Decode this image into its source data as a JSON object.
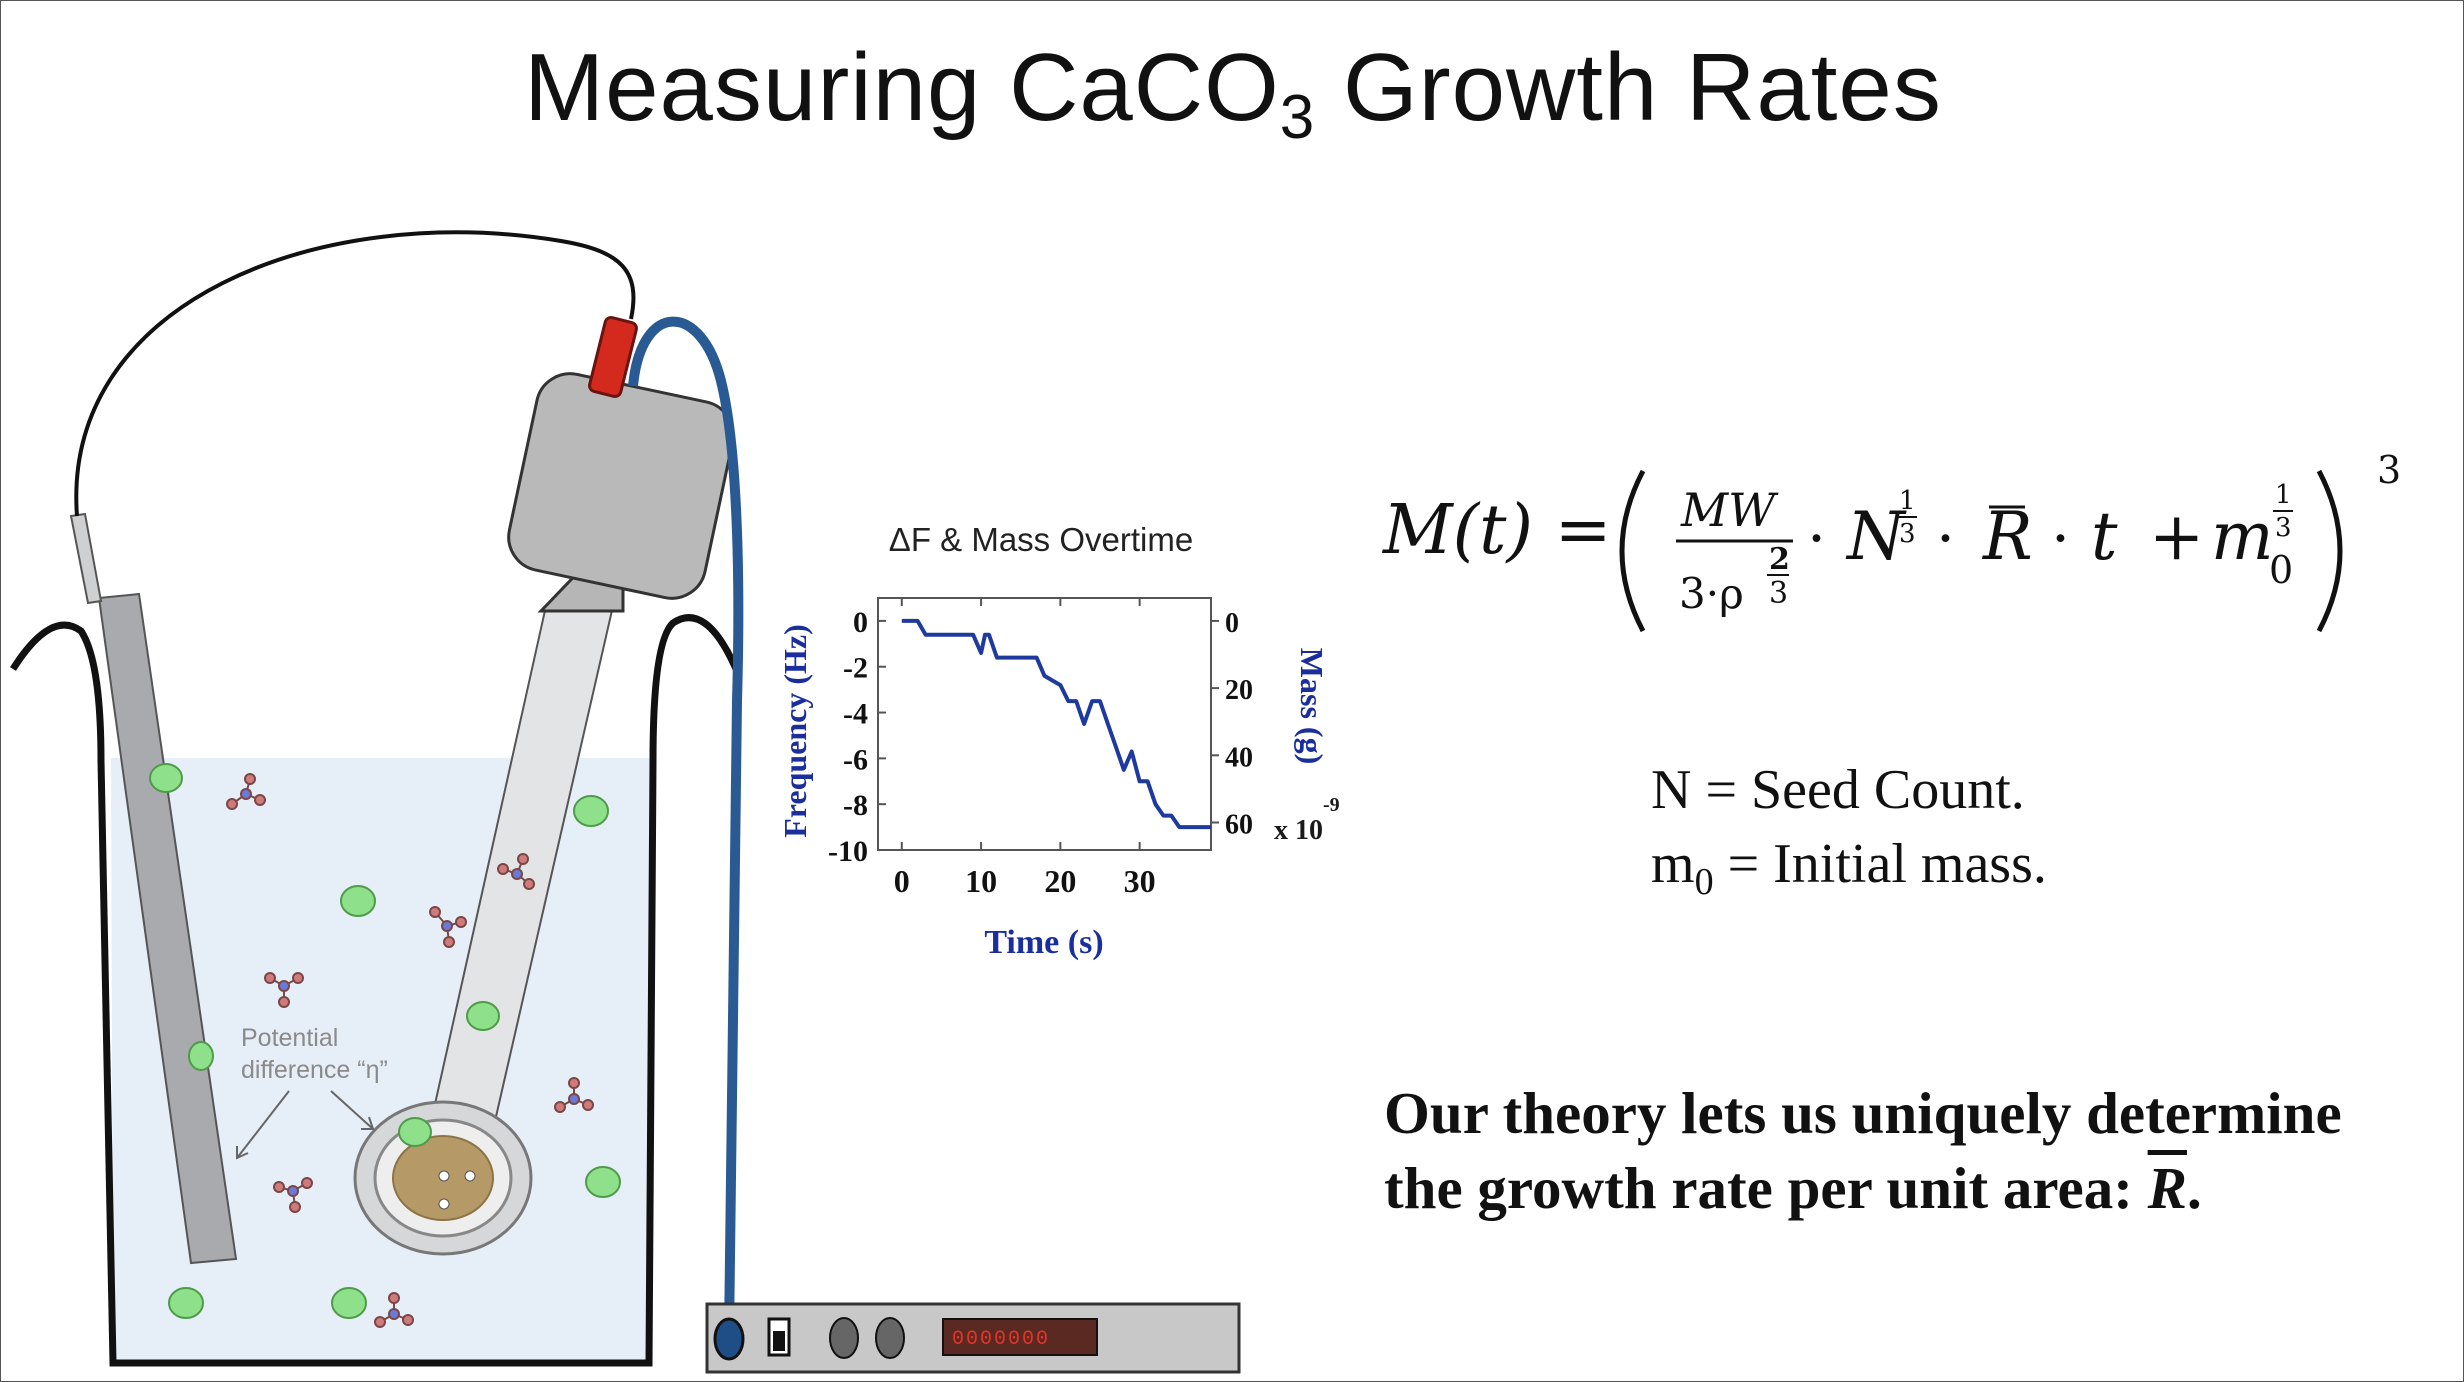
{
  "slide": {
    "title_main": "Measuring CaCO",
    "title_sub": "3",
    "title_end": " Growth Rates"
  },
  "diagram": {
    "annotation_line1": "Potential",
    "annotation_line2": "difference “η”",
    "device_display": "0000000"
  },
  "chart_data": {
    "type": "line",
    "title": "ΔF & Mass Overtime",
    "xlabel": "Time (s)",
    "ylabel_left": "Frequency (Hz)",
    "ylabel_right": "Mass (g)",
    "right_scale_label": "x 10",
    "right_scale_exp": "-9",
    "xlim": [
      -3,
      39
    ],
    "ylim": [
      -10,
      1
    ],
    "x_ticks": [
      "0",
      "10",
      "20",
      "30"
    ],
    "y_ticks_left": [
      "0",
      "-2",
      "-4",
      "-6",
      "-8",
      "-10"
    ],
    "y_ticks_right": [
      "0",
      "20",
      "40",
      "60"
    ],
    "series": [
      {
        "x": [
          0,
          2,
          3,
          9,
          10,
          10.5,
          11,
          12,
          17,
          18,
          20,
          21,
          22,
          23,
          24,
          25,
          26,
          27,
          28,
          29,
          30,
          31,
          32,
          33,
          34,
          35,
          38,
          39
        ],
        "y": [
          0,
          0,
          -0.6,
          -0.6,
          -1.4,
          -0.6,
          -0.6,
          -1.6,
          -1.6,
          -2.4,
          -2.8,
          -3.5,
          -3.5,
          -4.5,
          -3.5,
          -3.5,
          -4.5,
          -5.5,
          -6.5,
          -5.7,
          -7.0,
          -7.0,
          -8.0,
          -8.5,
          -8.5,
          -9.0,
          -9.0,
          -9.0
        ],
        "color": "#1f3a9e"
      }
    ],
    "colors": {
      "line": "#1f3a9e",
      "axis_labels": "#1a2f9c"
    }
  },
  "equation": {
    "lhs": "M(t) =",
    "num": "MW",
    "den": "3·ρ",
    "den_exp_num": "2",
    "den_exp_den": "3",
    "dot1": "·",
    "n": "N",
    "n_exp_num": "1",
    "n_exp_den": "3",
    "dot2": "·",
    "r": "R",
    "dot3": "·",
    "t": "t",
    "plus": "+",
    "m": "m",
    "m_sub": "0",
    "m_exp_num": "1",
    "m_exp_den": "3",
    "outer_exp": "3"
  },
  "definitions": {
    "line1": "N = Seed Count.",
    "line2_m": "m",
    "line2_sub": "0",
    "line2_rest": " = Initial mass."
  },
  "claim": {
    "line1": "Our theory lets us uniquely determine",
    "line2": "the growth rate per unit area: ",
    "symbol": "R",
    "end": "."
  },
  "colors": {
    "liquid": "#e6eef8",
    "seed": "#8fe08a",
    "tube": "#2a5a94",
    "probe_head": "#b9b9b9",
    "red_cap": "#d42a1e"
  }
}
